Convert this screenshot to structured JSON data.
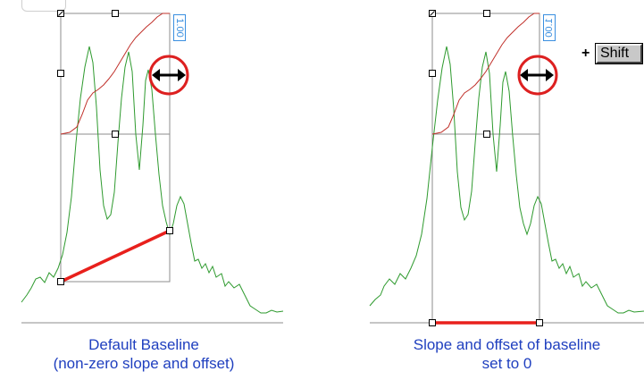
{
  "panels": {
    "left": {
      "caption_line1": "Default Baseline",
      "caption_line2": "(non-zero slope and offset)",
      "value_tag": "1.00"
    },
    "right": {
      "caption_line1": "Slope and offset of baseline",
      "caption_line2": "set to 0",
      "value_tag": "1.00",
      "modifier_plus": "+",
      "modifier_key": "Shift"
    }
  },
  "icons": {
    "resize": "horizontal-resize-icon",
    "highlight": "red-circle-highlight"
  },
  "colors": {
    "signal": "#2e9a2e",
    "cumulative": "#c0302a",
    "baseline": "#e8201c",
    "caption": "#1f3fbf",
    "handle_circle": "#dd2020",
    "frame": "#8c8c8c",
    "tag": "#3a8fe0"
  }
}
